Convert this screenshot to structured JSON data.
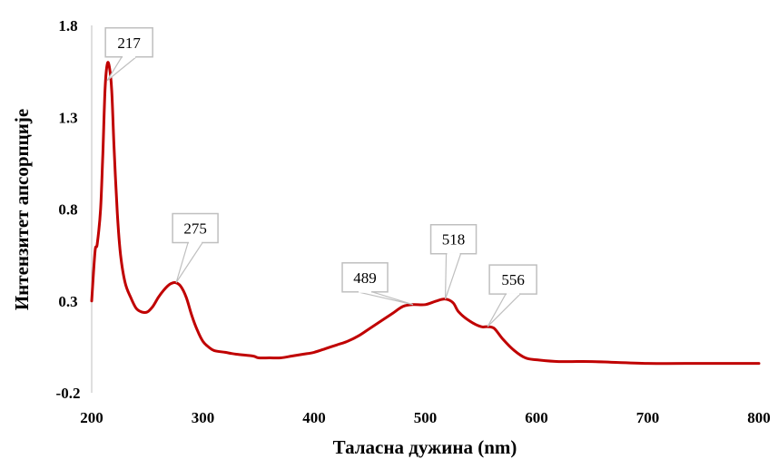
{
  "chart_data": {
    "type": "line",
    "title": "",
    "xlabel": "Таласна дужина (nm)",
    "ylabel": "Интензитет апсорпције",
    "xlim": [
      200,
      800
    ],
    "ylim": [
      -0.2,
      1.8
    ],
    "x_ticks": [
      "200",
      "300",
      "400",
      "500",
      "600",
      "700",
      "800"
    ],
    "y_ticks": [
      "-0.2",
      "0.3",
      "0.8",
      "1.3",
      "1.8"
    ],
    "grid": false,
    "legend": "none",
    "series": [
      {
        "color": "#c00000",
        "points": [
          [
            200,
            0.3
          ],
          [
            203,
            0.57
          ],
          [
            205,
            0.61
          ],
          [
            208,
            0.8
          ],
          [
            210,
            1.1
          ],
          [
            212,
            1.45
          ],
          [
            214,
            1.59
          ],
          [
            216,
            1.57
          ],
          [
            218,
            1.45
          ],
          [
            220,
            1.15
          ],
          [
            223,
            0.78
          ],
          [
            226,
            0.55
          ],
          [
            230,
            0.4
          ],
          [
            235,
            0.32
          ],
          [
            240,
            0.26
          ],
          [
            245,
            0.24
          ],
          [
            250,
            0.24
          ],
          [
            255,
            0.27
          ],
          [
            260,
            0.32
          ],
          [
            265,
            0.36
          ],
          [
            270,
            0.39
          ],
          [
            275,
            0.4
          ],
          [
            280,
            0.38
          ],
          [
            285,
            0.32
          ],
          [
            290,
            0.22
          ],
          [
            295,
            0.14
          ],
          [
            300,
            0.08
          ],
          [
            305,
            0.05
          ],
          [
            310,
            0.03
          ],
          [
            320,
            0.02
          ],
          [
            330,
            0.01
          ],
          [
            345,
            0.0
          ],
          [
            350,
            -0.01
          ],
          [
            360,
            -0.01
          ],
          [
            370,
            -0.01
          ],
          [
            380,
            0.0
          ],
          [
            390,
            0.01
          ],
          [
            400,
            0.02
          ],
          [
            410,
            0.04
          ],
          [
            420,
            0.06
          ],
          [
            430,
            0.08
          ],
          [
            440,
            0.11
          ],
          [
            450,
            0.15
          ],
          [
            460,
            0.19
          ],
          [
            470,
            0.23
          ],
          [
            480,
            0.27
          ],
          [
            489,
            0.28
          ],
          [
            500,
            0.28
          ],
          [
            510,
            0.3
          ],
          [
            518,
            0.31
          ],
          [
            525,
            0.29
          ],
          [
            530,
            0.24
          ],
          [
            540,
            0.19
          ],
          [
            550,
            0.16
          ],
          [
            556,
            0.16
          ],
          [
            562,
            0.15
          ],
          [
            570,
            0.09
          ],
          [
            580,
            0.03
          ],
          [
            590,
            -0.01
          ],
          [
            600,
            -0.02
          ],
          [
            620,
            -0.03
          ],
          [
            650,
            -0.03
          ],
          [
            700,
            -0.04
          ],
          [
            750,
            -0.04
          ],
          [
            800,
            -0.04
          ]
        ]
      }
    ],
    "annotations": [
      {
        "label": "217",
        "x": 214,
        "y": 1.5
      },
      {
        "label": "275",
        "x": 276,
        "y": 0.4
      },
      {
        "label": "489",
        "x": 489,
        "y": 0.28
      },
      {
        "label": "518",
        "x": 518,
        "y": 0.31
      },
      {
        "label": "556",
        "x": 556,
        "y": 0.16
      }
    ]
  }
}
